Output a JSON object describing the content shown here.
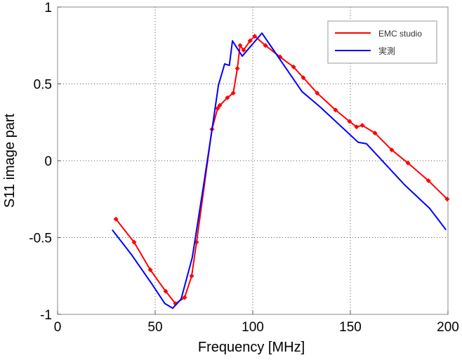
{
  "chart_data": {
    "type": "line",
    "title": "",
    "xlabel": "Frequency [MHz]",
    "ylabel": "S11 image part",
    "xlim": [
      0,
      200
    ],
    "ylim": [
      -1,
      1
    ],
    "xticks": [
      0,
      50,
      100,
      150,
      200
    ],
    "yticks": [
      -1,
      -0.5,
      0,
      0.5,
      1
    ],
    "xtick_labels": [
      "0",
      "50",
      "100",
      "150",
      "200"
    ],
    "ytick_labels": [
      "-1",
      "-0.5",
      "0",
      "0.5",
      "1"
    ],
    "grid": true,
    "legend_position": "top-right",
    "series": [
      {
        "name": "EMC studio",
        "color": "#ff0000",
        "marker": "diamond",
        "x": [
          29.9,
          39.2,
          47.5,
          55.4,
          60.4,
          65.1,
          68.7,
          71.2,
          79.1,
          82,
          83.1,
          87,
          90,
          92.1,
          93.5,
          95.3,
          98.6,
          101,
          106.5,
          114,
          120.9,
          125.9,
          133,
          142.4,
          149.6,
          153.2,
          156.1,
          162.6,
          171.2,
          179.5,
          190,
          199.6
        ],
        "y": [
          -0.38,
          -0.53,
          -0.71,
          -0.85,
          -0.93,
          -0.89,
          -0.75,
          -0.53,
          0.205,
          0.34,
          0.36,
          0.41,
          0.44,
          0.6,
          0.75,
          0.72,
          0.78,
          0.81,
          0.75,
          0.675,
          0.61,
          0.54,
          0.44,
          0.33,
          0.255,
          0.22,
          0.23,
          0.18,
          0.07,
          -0.015,
          -0.13,
          -0.25
        ]
      },
      {
        "name": "実測",
        "color": "#0000ff",
        "marker": "none",
        "x": [
          28,
          37.8,
          48.2,
          55,
          59,
          63.3,
          69,
          74.8,
          79.1,
          82.4,
          85.6,
          88,
          89.6,
          94.6,
          104.7,
          125.2,
          134.5,
          154,
          158.3,
          178,
          190.6,
          199
        ],
        "y": [
          -0.45,
          -0.61,
          -0.8,
          -0.93,
          -0.96,
          -0.9,
          -0.63,
          -0.16,
          0.2,
          0.49,
          0.63,
          0.62,
          0.78,
          0.68,
          0.83,
          0.45,
          0.35,
          0.12,
          0.11,
          -0.16,
          -0.31,
          -0.45
        ]
      }
    ]
  }
}
